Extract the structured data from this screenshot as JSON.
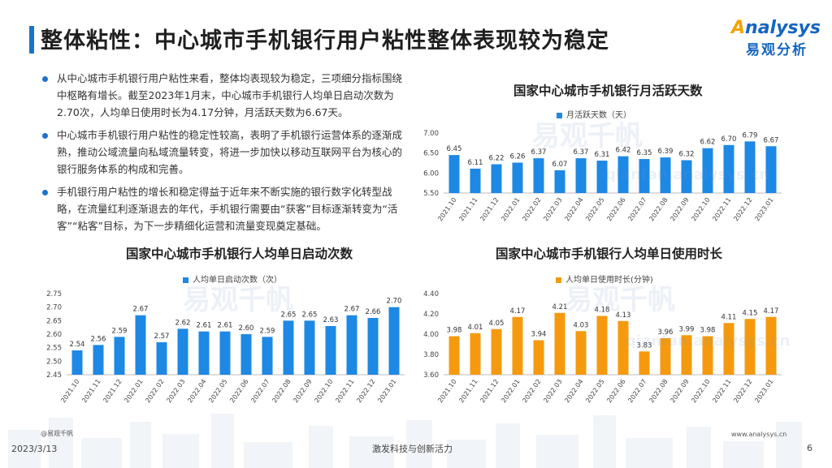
{
  "header": {
    "title": "整体粘性：中心城市手机银行用户粘性整体表现较为稳定",
    "logo_brand_a": "A",
    "logo_brand_rest": "nalysys",
    "logo_cn": "易观分析"
  },
  "bullets": [
    "从中心城市手机银行用户粘性来看，整体均表现较为稳定，三项细分指标围绕中枢略有增长。截至2023年1月末，中心城市手机银行人均单日启动次数为2.70次，人均单日使用时长为4.17分钟，月活跃天数为6.67天。",
    "中心城市手机银行用户粘性的稳定性较高，表明了手机银行运营体系的逐渐成熟，推动公域流量向私域流量转变，将进一步加快以移动互联网平台为核心的银行服务体系的构成和完善。",
    "手机银行用户粘性的增长和稳定得益于近年来不断实施的银行数字化转型战略，在流量红利逐渐退去的年代，手机银行需要由“获客”目标逐渐转变为“活客”“粘客”目标，为下一步精细化运营和流量变现奠定基础。"
  ],
  "watermark": {
    "cn": "易观千帆",
    "en": "qianfan.analysys.cn"
  },
  "chart_data": [
    {
      "type": "bar",
      "title": "国家中心城市手机银行月活跃天数",
      "legend": "月活跃天数（天）",
      "color": "#1e88e5",
      "categories": [
        "2021.10",
        "2021.11",
        "2021.12",
        "2022.01",
        "2022.02",
        "2022.03",
        "2022.04",
        "2022.05",
        "2022.06",
        "2022.07",
        "2022.08",
        "2022.09",
        "2022.10",
        "2022.11",
        "2022.12",
        "2023.01"
      ],
      "values": [
        6.45,
        6.11,
        6.22,
        6.26,
        6.37,
        6.07,
        6.37,
        6.31,
        6.42,
        6.35,
        6.39,
        6.32,
        6.62,
        6.7,
        6.79,
        6.67
      ],
      "labels": [
        "6.45",
        "6.11",
        "6.22",
        "6.26",
        "6.37",
        "6.07",
        "6.37",
        "6.31",
        "6.42",
        "6.35",
        "6.39",
        "6.32",
        "6.62",
        "6.70",
        "6.79",
        "6.67"
      ],
      "ylim": [
        5.5,
        7.0
      ],
      "yticks": [
        "5.50",
        "6.00",
        "6.50",
        "7.00"
      ],
      "grid": false
    },
    {
      "type": "bar",
      "title": "国家中心城市手机银行人均单日启动次数",
      "legend": "人均单日启动次数（次）",
      "color": "#1e88e5",
      "categories": [
        "2021.10",
        "2021.11",
        "2021.12",
        "2022.01",
        "2022.02",
        "2022.03",
        "2022.04",
        "2022.05",
        "2022.06",
        "2022.07",
        "2022.08",
        "2022.09",
        "2022.10",
        "2022.11",
        "2022.12",
        "2023.01"
      ],
      "values": [
        2.54,
        2.56,
        2.59,
        2.67,
        2.57,
        2.62,
        2.61,
        2.61,
        2.6,
        2.59,
        2.65,
        2.65,
        2.63,
        2.67,
        2.66,
        2.7
      ],
      "labels": [
        "2.54",
        "2.56",
        "2.59",
        "2.67",
        "2.57",
        "2.62",
        "2.61",
        "2.61",
        "2.60",
        "2.59",
        "2.65",
        "2.65",
        "2.63",
        "2.67",
        "2.66",
        "2.70"
      ],
      "ylim": [
        2.45,
        2.75
      ],
      "yticks": [
        "2.45",
        "2.50",
        "2.55",
        "2.60",
        "2.65",
        "2.70",
        "2.75"
      ],
      "grid": false
    },
    {
      "type": "bar",
      "title": "国家中心城市手机银行人均单日使用时长",
      "legend": "人均单日使用时长(分钟)",
      "color": "#f59a0e",
      "categories": [
        "2021.10",
        "2021.11",
        "2021.12",
        "2022.01",
        "2022.02",
        "2022.03",
        "2022.04",
        "2022.05",
        "2022.06",
        "2022.07",
        "2022.08",
        "2022.09",
        "2022.10",
        "2022.11",
        "2022.12",
        "2023.01"
      ],
      "values": [
        3.98,
        4.01,
        4.05,
        4.17,
        3.94,
        4.21,
        4.03,
        4.18,
        4.13,
        3.83,
        3.96,
        3.99,
        3.98,
        4.11,
        4.15,
        4.17
      ],
      "labels": [
        "3.98",
        "4.01",
        "4.05",
        "4.17",
        "3.94",
        "4.21",
        "4.03",
        "4.18",
        "4.13",
        "3.83",
        "3.96",
        "3.99",
        "3.98",
        "4.11",
        "4.15",
        "4.17"
      ],
      "ylim": [
        3.6,
        4.4
      ],
      "yticks": [
        "3.60",
        "3.80",
        "4.00",
        "4.20",
        "4.40"
      ],
      "grid": false
    }
  ],
  "footer": {
    "date": "2023/3/13",
    "source": "@易观千帆",
    "slogan": "激发科技与创新活力",
    "url": "www.analysys.cn",
    "page": "6"
  }
}
